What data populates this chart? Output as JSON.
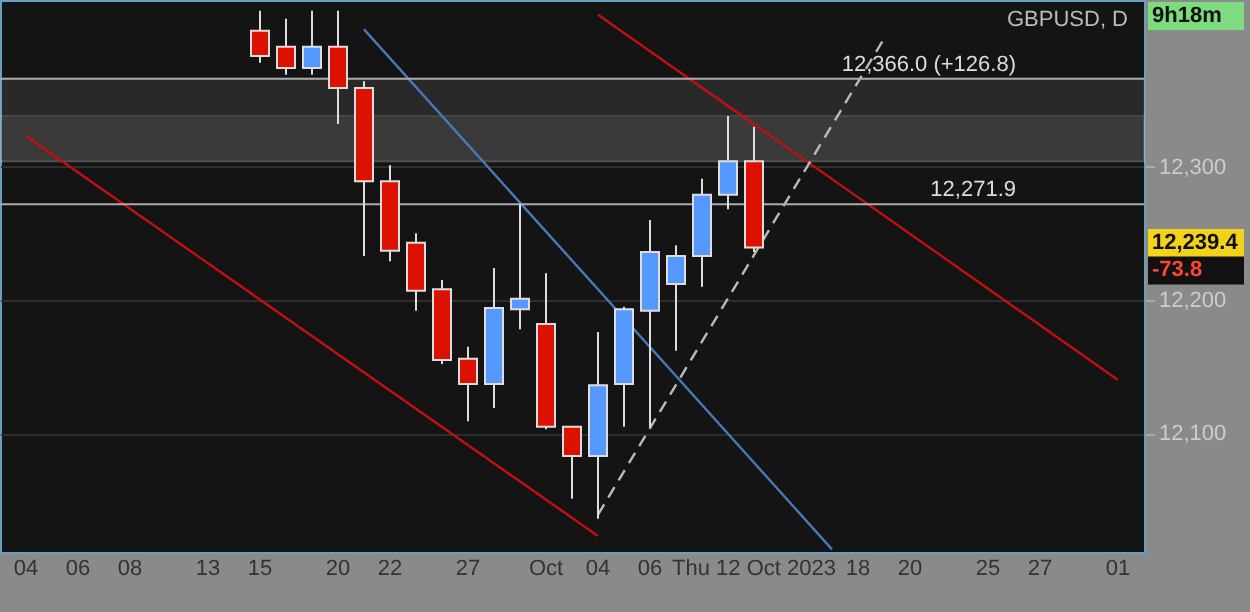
{
  "chart_data": {
    "type": "candlestick",
    "title": "GBPUSD, D",
    "categories": [
      "04",
      null,
      "06",
      null,
      "08",
      null,
      null,
      "13",
      null,
      "15",
      null,
      null,
      "20",
      null,
      "22",
      null,
      null,
      "27",
      null,
      null,
      "Oct",
      null,
      "04",
      null,
      "06",
      null,
      null,
      null,
      "Thu 12 Oct 2023",
      null,
      null,
      null,
      "18",
      null,
      "20",
      null,
      null,
      "25",
      null,
      "27",
      null,
      null,
      "01"
    ],
    "ohlc": [
      null,
      null,
      null,
      null,
      null,
      null,
      null,
      null,
      null,
      [
        12402,
        12417,
        12378,
        12383
      ],
      [
        12390,
        12411,
        12369,
        12374
      ],
      [
        12374,
        12417,
        12369,
        12390
      ],
      [
        12390,
        12417,
        12332,
        12359
      ],
      [
        12359,
        12364,
        12233,
        12289
      ],
      [
        12289,
        12301,
        12229,
        12237
      ],
      [
        12243,
        12250,
        12192,
        12207
      ],
      [
        12208,
        12215,
        12152,
        12155
      ],
      [
        12156,
        12165,
        12109,
        12137
      ],
      [
        12137,
        12224,
        12119,
        12194
      ],
      [
        12193,
        12271.9,
        12178,
        12201
      ],
      [
        12182,
        12220,
        12103,
        12105
      ],
      [
        12105,
        12105,
        12051,
        12083
      ],
      [
        12083,
        12176,
        12036,
        12136
      ],
      [
        12137,
        12195,
        12105,
        12193
      ],
      [
        12192,
        12260,
        12105,
        12236
      ],
      [
        12212,
        12241,
        12162,
        12233
      ],
      [
        12233,
        12291,
        12210,
        12279
      ],
      [
        12279,
        12338,
        12268,
        12304
      ],
      [
        12304,
        12330,
        12236,
        12239.4
      ],
      null,
      null,
      null,
      null,
      null,
      null,
      null,
      null,
      null,
      null,
      null,
      null,
      null,
      null
    ],
    "colors": [
      null,
      null,
      null,
      null,
      null,
      null,
      null,
      null,
      null,
      "#dd1100",
      "#dd1100",
      "#5599ff",
      "#dd1100",
      "#dd1100",
      "#dd1100",
      "#dd1100",
      "#dd1100",
      "#dd1100",
      "#5599ff",
      "#5599ff",
      "#dd1100",
      "#dd1100",
      "#5599ff",
      "#5599ff",
      "#5599ff",
      "#5599ff",
      "#5599ff",
      "#5599ff",
      "#dd1100",
      null,
      null,
      null,
      null,
      null,
      null,
      null,
      null,
      null,
      null,
      null,
      null,
      null,
      null
    ],
    "series": [
      {
        "type": "line",
        "color": "#4a78b8",
        "values": [
          null,
          null,
          null,
          null,
          null,
          null,
          null,
          null,
          null,
          null,
          null,
          null,
          null,
          12403,
          null,
          null,
          null,
          null,
          null,
          null,
          null,
          null,
          null,
          null,
          null,
          null,
          null,
          null,
          null,
          null,
          null,
          12013,
          null,
          null,
          null,
          null,
          null,
          null,
          null,
          null,
          null,
          null,
          null
        ]
      },
      {
        "type": "line",
        "color": "#c01010",
        "values": [
          null,
          null,
          null,
          null,
          null,
          null,
          null,
          null,
          null,
          null,
          null,
          null,
          null,
          null,
          null,
          null,
          null,
          null,
          null,
          null,
          null,
          null,
          12414,
          null,
          null,
          null,
          null,
          null,
          null,
          null,
          null,
          null,
          null,
          null,
          null,
          null,
          null,
          null,
          null,
          null,
          null,
          null,
          12140
        ]
      },
      {
        "type": "line",
        "color": "#c01010",
        "values": [
          12323,
          null,
          null,
          null,
          null,
          null,
          null,
          null,
          null,
          null,
          null,
          null,
          null,
          null,
          null,
          null,
          null,
          null,
          null,
          null,
          null,
          null,
          12023,
          null,
          null,
          null,
          null,
          null,
          null,
          null,
          null,
          null,
          null,
          null,
          null,
          null,
          null,
          null,
          null,
          null,
          null,
          null,
          null
        ]
      },
      {
        "type": "line",
        "color": "#bbbbbb",
        "line_style": "dashed",
        "values": [
          null,
          null,
          null,
          null,
          null,
          null,
          null,
          null,
          null,
          null,
          null,
          null,
          null,
          null,
          null,
          null,
          null,
          null,
          null,
          null,
          null,
          null,
          12039,
          null,
          null,
          null,
          null,
          null,
          null,
          null,
          null,
          null,
          null,
          12396,
          null,
          null,
          null,
          null,
          null,
          null,
          null,
          null,
          null
        ]
      }
    ],
    "ylim": [
      12011,
      12425
    ],
    "yticks": [
      {
        "value": 12100,
        "label": "12,100"
      },
      {
        "value": 12200,
        "label": "12,200"
      },
      {
        "value": 12300,
        "label": "12,300"
      }
    ],
    "ref_lines": [
      {
        "axis": "y",
        "value": 12271.9,
        "label": "12,271.9",
        "color": "#aaaaaa"
      },
      {
        "axis": "y",
        "value": 12366,
        "label": "12,366.0 (+126.8)",
        "color": "#aaaaaa"
      }
    ],
    "bands": [
      {
        "axis": "y",
        "from": 12304,
        "to": 12366,
        "color": "#888888"
      },
      {
        "axis": "y",
        "from": 12304,
        "to": 12338,
        "color": "#888888"
      }
    ],
    "annotations": [
      "12,239.4",
      "-73.8",
      "9h18m"
    ],
    "grid": "y"
  }
}
